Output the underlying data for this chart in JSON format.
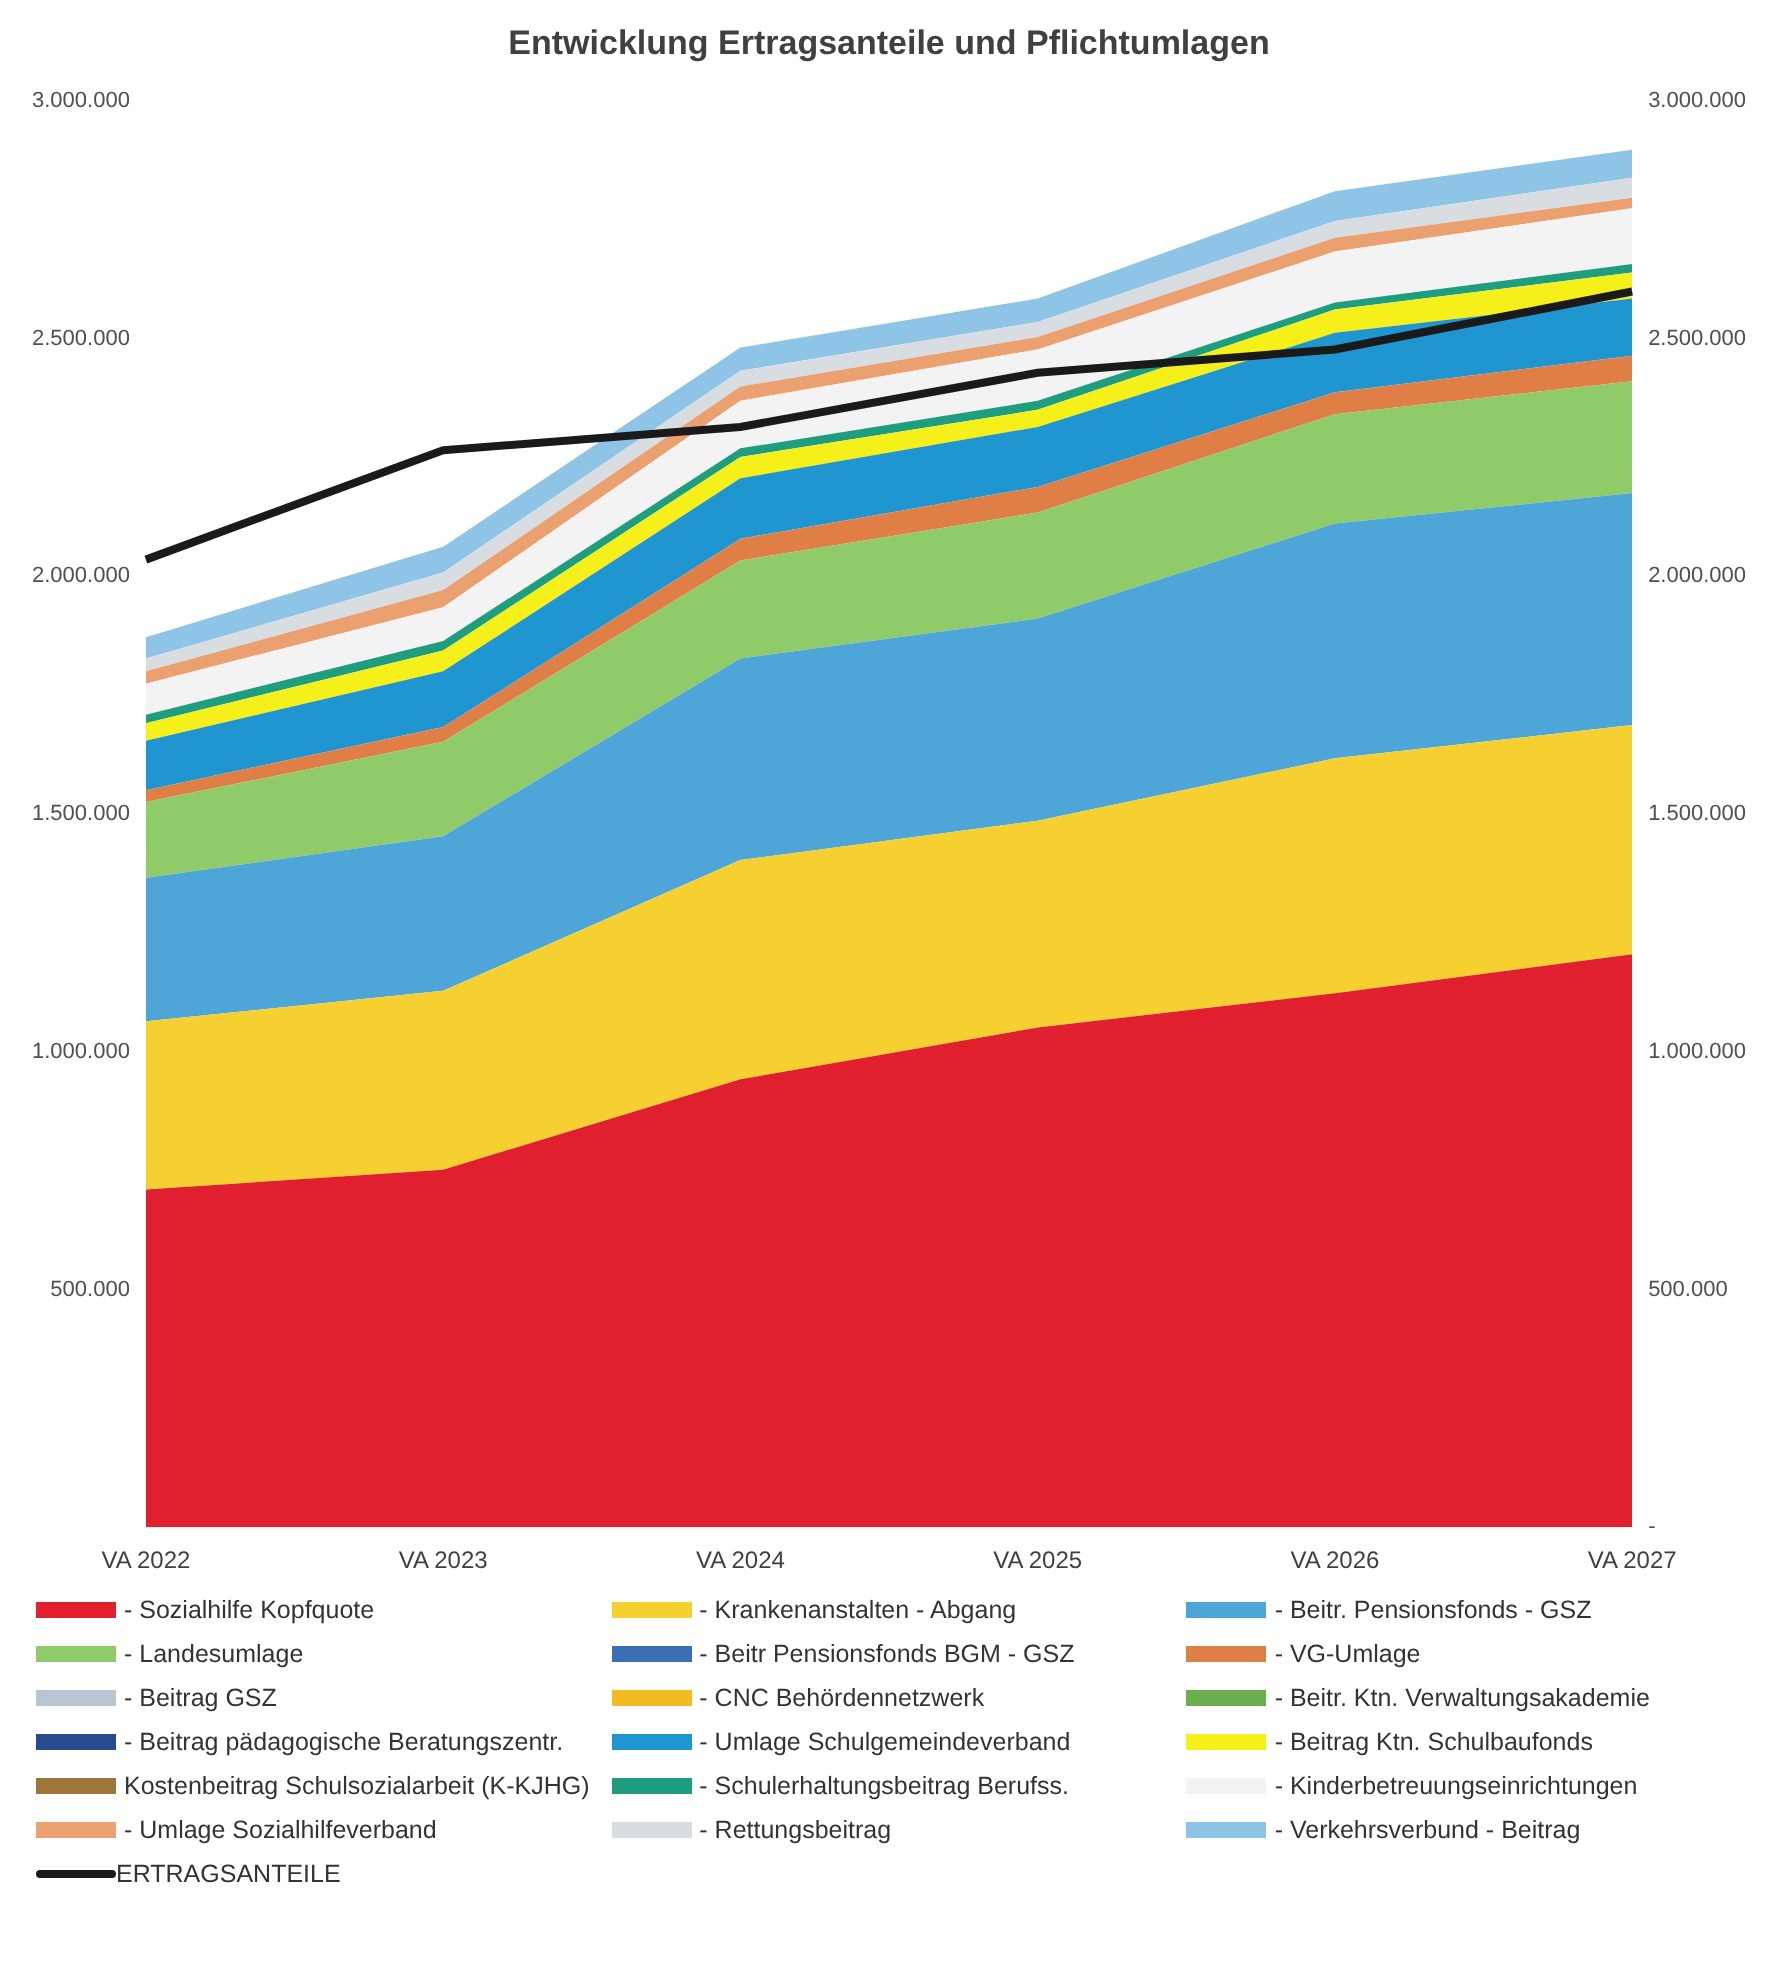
{
  "chart_data": {
    "type": "area",
    "stacked": true,
    "title": "Entwicklung Ertragsanteile und Pflichtumlagen",
    "categories": [
      "VA 2022",
      "VA 2023",
      "VA 2024",
      "VA 2025",
      "VA 2026",
      "VA 2027"
    ],
    "ylim": [
      0,
      3000000
    ],
    "yticks": [
      {
        "value": 500000,
        "label": "500.000"
      },
      {
        "value": 1000000,
        "label": "1.000.000"
      },
      {
        "value": 1500000,
        "label": "1.500.000"
      },
      {
        "value": 2000000,
        "label": "2.000.000"
      },
      {
        "value": 2500000,
        "label": "2.500.000"
      },
      {
        "value": 3000000,
        "label": "3.000.000"
      }
    ],
    "y2lim": [
      0,
      3000000
    ],
    "y2ticks": [
      {
        "value": 0,
        "label": "-"
      },
      {
        "value": 500000,
        "label": "500.000"
      },
      {
        "value": 1000000,
        "label": "1.000.000"
      },
      {
        "value": 1500000,
        "label": "1.500.000"
      },
      {
        "value": 2000000,
        "label": "2.000.000"
      },
      {
        "value": 2500000,
        "label": "2.500.000"
      },
      {
        "value": 3000000,
        "label": "3.000.000"
      }
    ],
    "grid": false,
    "legend": "bottom",
    "series": [
      {
        "name": "- Sozialhilfe Kopfquote",
        "color": "#e0202e",
        "values": [
          710000,
          752000,
          942000,
          1051000,
          1123000,
          1205000
        ]
      },
      {
        "name": "- Krankenanstalten - Abgang",
        "color": "#f5d030",
        "values": [
          354000,
          376000,
          461000,
          435000,
          494000,
          482000
        ]
      },
      {
        "name": "- Beitr. Pensionsfonds  - GSZ",
        "color": "#4ea6d8",
        "values": [
          302000,
          325000,
          424000,
          425000,
          494000,
          488000
        ]
      },
      {
        "name": "- Landesumlage",
        "color": "#8fcb68",
        "values": [
          159000,
          199000,
          206000,
          223000,
          230000,
          235000
        ]
      },
      {
        "name": "- Beitr  Pensionsfonds BGM - GSZ",
        "color": "#3a6fb5",
        "values": [
          null,
          null,
          null,
          null,
          null,
          null
        ]
      },
      {
        "name": "- VG-Umlage",
        "color": "#e07f45",
        "values": [
          25000,
          31000,
          46000,
          54000,
          46000,
          54000
        ]
      },
      {
        "name": "- Beitrag GSZ",
        "color": "#b8c6d4",
        "values": [
          null,
          null,
          null,
          null,
          null,
          null
        ]
      },
      {
        "name": "- CNC Behördennetzwerk",
        "color": "#f0bc20",
        "values": [
          null,
          null,
          null,
          null,
          null,
          null
        ]
      },
      {
        "name": "- Beitr. Ktn. Verwaltungsakademie",
        "color": "#6aae4e",
        "values": [
          null,
          null,
          null,
          null,
          null,
          null
        ]
      },
      {
        "name": "- Beitrag pädagogische Beratungszentr.",
        "color": "#2a4a8c",
        "values": [
          null,
          null,
          null,
          null,
          null,
          null
        ]
      },
      {
        "name": "- Umlage Schulgemeindeverband",
        "color": "#1f96cf",
        "values": [
          104000,
          117000,
          127000,
          126000,
          125000,
          120000
        ]
      },
      {
        "name": "- Beitrag Ktn. Schulbaufonds",
        "color": "#f5ef1a",
        "values": [
          37000,
          44000,
          45000,
          36000,
          49000,
          55000
        ]
      },
      {
        "name": "Kostenbeitrag Schulsozialarbeit (K-KJHG)",
        "color": "#a0753a",
        "values": [
          null,
          null,
          null,
          null,
          null,
          null
        ]
      },
      {
        "name": "- Schulerhaltungsbeitrag Berufss.",
        "color": "#1e9e7e",
        "values": [
          18000,
          20000,
          18000,
          19000,
          15000,
          18000
        ]
      },
      {
        "name": "- Kinderbetreuungseinrichtungen",
        "color": "#f3f3f3",
        "values": [
          65000,
          71000,
          100000,
          108000,
          107000,
          117000
        ]
      },
      {
        "name": "- Umlage Sozialhilfeverband",
        "color": "#eba070",
        "values": [
          26000,
          36000,
          30000,
          26000,
          29000,
          22000
        ]
      },
      {
        "name": "- Rettungsbeitrag",
        "color": "#d8dde2",
        "values": [
          27000,
          37000,
          33000,
          32000,
          35000,
          42000
        ]
      },
      {
        "name": "- Verkehrsverbund - Beitrag",
        "color": "#8ec4e6",
        "values": [
          45000,
          54000,
          49000,
          49000,
          63000,
          59000
        ]
      },
      {
        "name": "ERTRAGSANTEILE",
        "type": "line",
        "color": "#1a1a1a",
        "values": [
          2035000,
          2265000,
          2314000,
          2428000,
          2477000,
          2599000
        ]
      }
    ]
  }
}
